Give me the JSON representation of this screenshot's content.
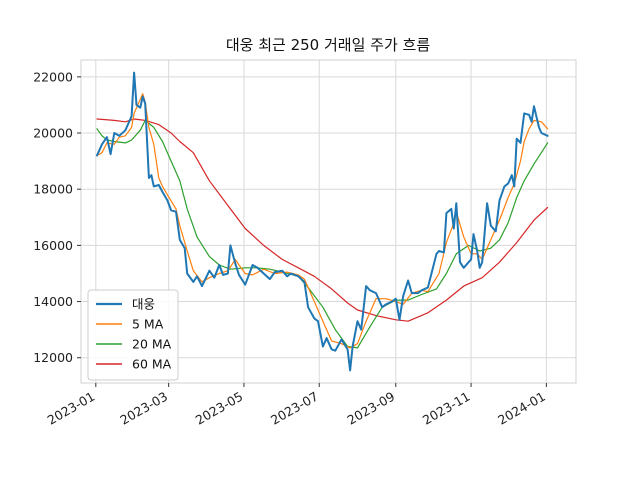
{
  "chart_data": {
    "type": "line",
    "title": "대웅 최근 250 거래일 주가 흐름",
    "xlabel": "",
    "ylabel": "",
    "x_domain": [
      "2022-12-20",
      "2024-01-25"
    ],
    "ylim": [
      11100,
      22600
    ],
    "x_ticks": [
      {
        "date": "2023-01-01",
        "label": "2023-01"
      },
      {
        "date": "2023-03-01",
        "label": "2023-03"
      },
      {
        "date": "2023-05-01",
        "label": "2023-05"
      },
      {
        "date": "2023-07-01",
        "label": "2023-07"
      },
      {
        "date": "2023-09-01",
        "label": "2023-09"
      },
      {
        "date": "2023-11-01",
        "label": "2023-11"
      },
      {
        "date": "2024-01-01",
        "label": "2024-01"
      }
    ],
    "y_ticks": [
      12000,
      14000,
      16000,
      18000,
      20000,
      22000
    ],
    "grid": true,
    "legend_position": "lower-left",
    "series": [
      {
        "name": "대웅",
        "color": "#1f77b4",
        "width": 2,
        "points": [
          [
            "2023-01-02",
            19200
          ],
          [
            "2023-01-06",
            19600
          ],
          [
            "2023-01-10",
            19850
          ],
          [
            "2023-01-13",
            19250
          ],
          [
            "2023-01-16",
            20000
          ],
          [
            "2023-01-20",
            19900
          ],
          [
            "2023-01-25",
            20100
          ],
          [
            "2023-01-30",
            20600
          ],
          [
            "2023-02-01",
            22150
          ],
          [
            "2023-02-03",
            21000
          ],
          [
            "2023-02-06",
            20900
          ],
          [
            "2023-02-08",
            21300
          ],
          [
            "2023-02-10",
            21050
          ],
          [
            "2023-02-13",
            18400
          ],
          [
            "2023-02-15",
            18500
          ],
          [
            "2023-02-17",
            18100
          ],
          [
            "2023-02-21",
            18150
          ],
          [
            "2023-02-24",
            17900
          ],
          [
            "2023-02-28",
            17600
          ],
          [
            "2023-03-03",
            17250
          ],
          [
            "2023-03-07",
            17200
          ],
          [
            "2023-03-10",
            16200
          ],
          [
            "2023-03-14",
            15900
          ],
          [
            "2023-03-16",
            15000
          ],
          [
            "2023-03-21",
            14700
          ],
          [
            "2023-03-24",
            14900
          ],
          [
            "2023-03-28",
            14550
          ],
          [
            "2023-04-03",
            15100
          ],
          [
            "2023-04-07",
            14850
          ],
          [
            "2023-04-11",
            15300
          ],
          [
            "2023-04-14",
            14950
          ],
          [
            "2023-04-18",
            15000
          ],
          [
            "2023-04-20",
            16000
          ],
          [
            "2023-04-24",
            15350
          ],
          [
            "2023-04-27",
            14950
          ],
          [
            "2023-05-02",
            14600
          ],
          [
            "2023-05-08",
            15300
          ],
          [
            "2023-05-12",
            15200
          ],
          [
            "2023-05-17",
            15000
          ],
          [
            "2023-05-22",
            14800
          ],
          [
            "2023-05-26",
            15050
          ],
          [
            "2023-06-01",
            15100
          ],
          [
            "2023-06-05",
            14900
          ],
          [
            "2023-06-08",
            15000
          ],
          [
            "2023-06-14",
            14900
          ],
          [
            "2023-06-19",
            14700
          ],
          [
            "2023-06-22",
            13800
          ],
          [
            "2023-06-27",
            13400
          ],
          [
            "2023-06-30",
            13300
          ],
          [
            "2023-07-04",
            12400
          ],
          [
            "2023-07-07",
            12700
          ],
          [
            "2023-07-11",
            12300
          ],
          [
            "2023-07-14",
            12250
          ],
          [
            "2023-07-19",
            12650
          ],
          [
            "2023-07-24",
            12300
          ],
          [
            "2023-07-26",
            11550
          ],
          [
            "2023-07-28",
            12400
          ],
          [
            "2023-08-01",
            13300
          ],
          [
            "2023-08-04",
            13000
          ],
          [
            "2023-08-08",
            14550
          ],
          [
            "2023-08-11",
            14400
          ],
          [
            "2023-08-16",
            14300
          ],
          [
            "2023-08-21",
            13800
          ],
          [
            "2023-08-24",
            13900
          ],
          [
            "2023-08-29",
            14000
          ],
          [
            "2023-09-01",
            14100
          ],
          [
            "2023-09-04",
            13350
          ],
          [
            "2023-09-07",
            14200
          ],
          [
            "2023-09-11",
            14750
          ],
          [
            "2023-09-14",
            14300
          ],
          [
            "2023-09-19",
            14300
          ],
          [
            "2023-09-22",
            14400
          ],
          [
            "2023-09-27",
            14500
          ],
          [
            "2023-10-04",
            15700
          ],
          [
            "2023-10-06",
            15800
          ],
          [
            "2023-10-10",
            15750
          ],
          [
            "2023-10-12",
            17150
          ],
          [
            "2023-10-16",
            17300
          ],
          [
            "2023-10-18",
            16600
          ],
          [
            "2023-10-20",
            17500
          ],
          [
            "2023-10-23",
            15400
          ],
          [
            "2023-10-26",
            15200
          ],
          [
            "2023-10-30",
            15400
          ],
          [
            "2023-11-01",
            15500
          ],
          [
            "2023-11-03",
            16400
          ],
          [
            "2023-11-06",
            15800
          ],
          [
            "2023-11-08",
            15200
          ],
          [
            "2023-11-10",
            15400
          ],
          [
            "2023-11-14",
            17500
          ],
          [
            "2023-11-17",
            16700
          ],
          [
            "2023-11-21",
            16500
          ],
          [
            "2023-11-24",
            17600
          ],
          [
            "2023-11-28",
            18100
          ],
          [
            "2023-12-01",
            18200
          ],
          [
            "2023-12-04",
            18500
          ],
          [
            "2023-12-06",
            18100
          ],
          [
            "2023-12-08",
            19800
          ],
          [
            "2023-12-11",
            19650
          ],
          [
            "2023-12-14",
            20700
          ],
          [
            "2023-12-18",
            20650
          ],
          [
            "2023-12-20",
            20400
          ],
          [
            "2023-12-22",
            20950
          ],
          [
            "2023-12-26",
            20200
          ],
          [
            "2023-12-28",
            20000
          ],
          [
            "2024-01-02",
            19900
          ]
        ]
      },
      {
        "name": "5 MA",
        "color": "#ff7f0e",
        "width": 1.2,
        "points": [
          [
            "2023-01-02",
            19200
          ],
          [
            "2023-01-06",
            19300
          ],
          [
            "2023-01-10",
            19650
          ],
          [
            "2023-01-16",
            19600
          ],
          [
            "2023-01-20",
            19850
          ],
          [
            "2023-01-25",
            19900
          ],
          [
            "2023-01-30",
            20200
          ],
          [
            "2023-02-01",
            20700
          ],
          [
            "2023-02-06",
            21200
          ],
          [
            "2023-02-08",
            21400
          ],
          [
            "2023-02-10",
            21100
          ],
          [
            "2023-02-13",
            20200
          ],
          [
            "2023-02-17",
            19600
          ],
          [
            "2023-02-21",
            18400
          ],
          [
            "2023-02-24",
            18100
          ],
          [
            "2023-02-28",
            17800
          ],
          [
            "2023-03-07",
            17300
          ],
          [
            "2023-03-10",
            16700
          ],
          [
            "2023-03-16",
            15800
          ],
          [
            "2023-03-21",
            15100
          ],
          [
            "2023-03-28",
            14700
          ],
          [
            "2023-04-03",
            14850
          ],
          [
            "2023-04-11",
            15000
          ],
          [
            "2023-04-18",
            15100
          ],
          [
            "2023-04-24",
            15500
          ],
          [
            "2023-04-27",
            15300
          ],
          [
            "2023-05-02",
            15000
          ],
          [
            "2023-05-08",
            14950
          ],
          [
            "2023-05-17",
            15150
          ],
          [
            "2023-05-26",
            15000
          ],
          [
            "2023-06-05",
            15050
          ],
          [
            "2023-06-14",
            14950
          ],
          [
            "2023-06-19",
            14800
          ],
          [
            "2023-06-27",
            14000
          ],
          [
            "2023-07-04",
            13300
          ],
          [
            "2023-07-11",
            12600
          ],
          [
            "2023-07-19",
            12500
          ],
          [
            "2023-07-26",
            12350
          ],
          [
            "2023-08-01",
            12500
          ],
          [
            "2023-08-08",
            13300
          ],
          [
            "2023-08-16",
            14100
          ],
          [
            "2023-08-24",
            14100
          ],
          [
            "2023-09-01",
            14000
          ],
          [
            "2023-09-07",
            13900
          ],
          [
            "2023-09-14",
            14300
          ],
          [
            "2023-09-22",
            14400
          ],
          [
            "2023-09-27",
            14350
          ],
          [
            "2023-10-06",
            15000
          ],
          [
            "2023-10-12",
            16100
          ],
          [
            "2023-10-18",
            16800
          ],
          [
            "2023-10-20",
            17200
          ],
          [
            "2023-10-26",
            16300
          ],
          [
            "2023-11-01",
            15700
          ],
          [
            "2023-11-06",
            15700
          ],
          [
            "2023-11-10",
            15500
          ],
          [
            "2023-11-17",
            16200
          ],
          [
            "2023-11-24",
            16900
          ],
          [
            "2023-12-01",
            17700
          ],
          [
            "2023-12-06",
            18200
          ],
          [
            "2023-12-11",
            19000
          ],
          [
            "2023-12-14",
            19700
          ],
          [
            "2023-12-18",
            20150
          ],
          [
            "2023-12-22",
            20450
          ],
          [
            "2023-12-28",
            20400
          ],
          [
            "2024-01-02",
            20150
          ]
        ]
      },
      {
        "name": "20 MA",
        "color": "#2ca02c",
        "width": 1.2,
        "points": [
          [
            "2023-01-02",
            20150
          ],
          [
            "2023-01-06",
            19900
          ],
          [
            "2023-01-10",
            19750
          ],
          [
            "2023-01-16",
            19700
          ],
          [
            "2023-01-25",
            19650
          ],
          [
            "2023-01-30",
            19750
          ],
          [
            "2023-02-06",
            20100
          ],
          [
            "2023-02-10",
            20450
          ],
          [
            "2023-02-17",
            20200
          ],
          [
            "2023-02-24",
            19700
          ],
          [
            "2023-03-03",
            19000
          ],
          [
            "2023-03-10",
            18300
          ],
          [
            "2023-03-16",
            17300
          ],
          [
            "2023-03-24",
            16300
          ],
          [
            "2023-04-03",
            15600
          ],
          [
            "2023-04-11",
            15300
          ],
          [
            "2023-04-20",
            15150
          ],
          [
            "2023-05-02",
            15200
          ],
          [
            "2023-05-12",
            15200
          ],
          [
            "2023-05-22",
            15150
          ],
          [
            "2023-06-01",
            15050
          ],
          [
            "2023-06-14",
            14900
          ],
          [
            "2023-06-22",
            14500
          ],
          [
            "2023-07-04",
            13800
          ],
          [
            "2023-07-14",
            13000
          ],
          [
            "2023-07-24",
            12400
          ],
          [
            "2023-08-01",
            12350
          ],
          [
            "2023-08-11",
            13100
          ],
          [
            "2023-08-21",
            13800
          ],
          [
            "2023-09-01",
            14050
          ],
          [
            "2023-09-11",
            14050
          ],
          [
            "2023-09-22",
            14250
          ],
          [
            "2023-10-04",
            14450
          ],
          [
            "2023-10-12",
            15000
          ],
          [
            "2023-10-20",
            15700
          ],
          [
            "2023-10-30",
            16000
          ],
          [
            "2023-11-08",
            15800
          ],
          [
            "2023-11-17",
            15900
          ],
          [
            "2023-11-24",
            16200
          ],
          [
            "2023-12-01",
            16800
          ],
          [
            "2023-12-08",
            17700
          ],
          [
            "2023-12-14",
            18300
          ],
          [
            "2023-12-22",
            18900
          ],
          [
            "2024-01-02",
            19650
          ]
        ]
      },
      {
        "name": "60 MA",
        "color": "#d62728",
        "width": 1.2,
        "points": [
          [
            "2023-01-02",
            20500
          ],
          [
            "2023-01-16",
            20450
          ],
          [
            "2023-01-25",
            20400
          ],
          [
            "2023-02-01",
            20500
          ],
          [
            "2023-02-10",
            20450
          ],
          [
            "2023-02-21",
            20300
          ],
          [
            "2023-03-03",
            20000
          ],
          [
            "2023-03-10",
            19700
          ],
          [
            "2023-03-21",
            19300
          ],
          [
            "2023-04-03",
            18300
          ],
          [
            "2023-04-20",
            17300
          ],
          [
            "2023-05-02",
            16600
          ],
          [
            "2023-05-17",
            16000
          ],
          [
            "2023-06-01",
            15500
          ],
          [
            "2023-06-14",
            15200
          ],
          [
            "2023-06-27",
            14900
          ],
          [
            "2023-07-11",
            14450
          ],
          [
            "2023-07-24",
            13950
          ],
          [
            "2023-08-01",
            13700
          ],
          [
            "2023-08-16",
            13500
          ],
          [
            "2023-09-01",
            13350
          ],
          [
            "2023-09-11",
            13300
          ],
          [
            "2023-09-27",
            13600
          ],
          [
            "2023-10-12",
            14050
          ],
          [
            "2023-10-26",
            14550
          ],
          [
            "2023-11-10",
            14850
          ],
          [
            "2023-11-24",
            15400
          ],
          [
            "2023-12-08",
            16100
          ],
          [
            "2023-12-22",
            16900
          ],
          [
            "2024-01-02",
            17350
          ]
        ]
      }
    ]
  }
}
